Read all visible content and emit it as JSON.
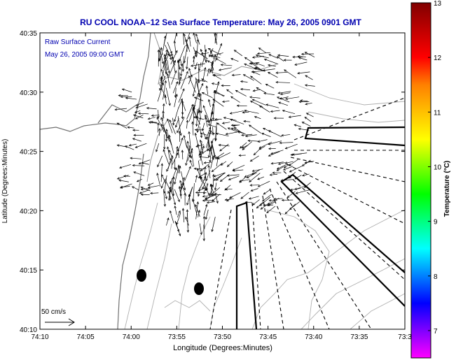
{
  "title": "RU COOL  NOAA–12  Sea Surface Temperature:  May 26, 2005 0901 GMT",
  "overlay": {
    "line1": "Raw Surface Current",
    "line2": "May 26, 2005 09:00 GMT"
  },
  "axes": {
    "xlabel": "Longitude (Degrees:Minutes)",
    "ylabel": "Latitude (Degrees:Minutes)",
    "x_ticks": [
      "74:10",
      "74:05",
      "74:00",
      "73:55",
      "73:50",
      "73:45",
      "73:40",
      "73:35",
      "73:3"
    ],
    "y_ticks": [
      "40:35",
      "40:30",
      "40:25",
      "40:20",
      "40:15",
      "40:10"
    ]
  },
  "scale_bar": {
    "label": "50 cm/s"
  },
  "colorbar": {
    "label": "Temperature (°C)",
    "ticks": [
      "13",
      "12",
      "11",
      "10",
      "9",
      "8",
      "7"
    ],
    "min": 6.5,
    "max": 13,
    "colors": [
      "#ff00ff",
      "#8000ff",
      "#0000ff",
      "#0080ff",
      "#00ffff",
      "#00ff80",
      "#00ff00",
      "#80ff00",
      "#ffff00",
      "#ffc000",
      "#ff8000",
      "#ff0000",
      "#c00000",
      "#800000"
    ]
  },
  "colors": {
    "title": "#0000b0",
    "overlay_text": "#0000b0",
    "arrows": "#000000",
    "contours": "#b0b0b0",
    "coast": "#707070"
  }
}
